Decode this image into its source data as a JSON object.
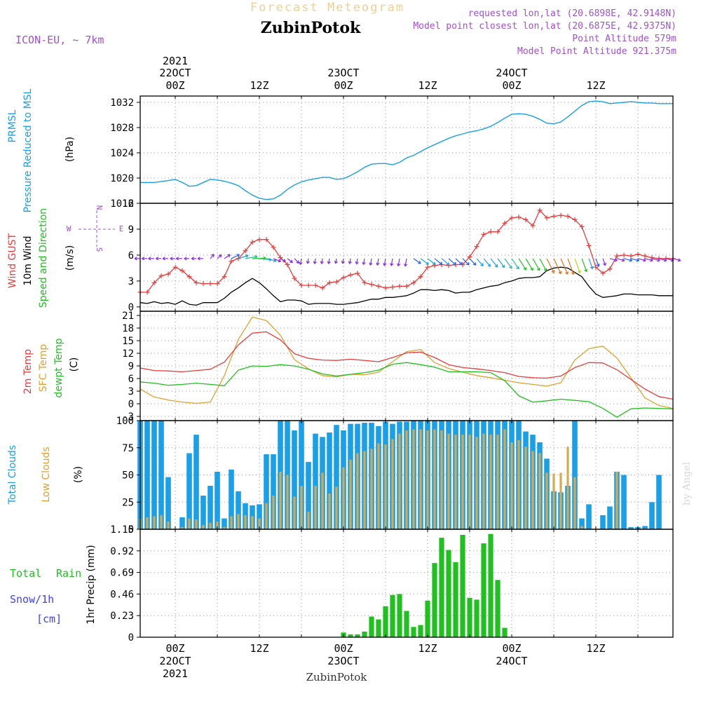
{
  "header": {
    "title": "Forecast Meteogram",
    "location": "ZubinPotok",
    "model": "ICON-EU, ~ 7km",
    "requested": "requested lon,lat (20.6898E, 42.9148N)",
    "closest": "Model point closest lon,lat (20.6875E, 42.9375N)",
    "point_alt": "Point Altitude 579m",
    "model_alt": "Model Point Altitude 921.375m",
    "watermark": "by Angel",
    "footer_location": "ZubinPotok"
  },
  "colors": {
    "blue": "#1aa0e6",
    "red": "#e83c3c",
    "orange": "#e0a030",
    "green": "#20c020",
    "purple": "#a050d0",
    "snow": "#4040ff",
    "title": "#f0d090",
    "grid": "#aaaaaa"
  },
  "time_axis": {
    "top_labels": [
      {
        "t": 0,
        "l1": "2021",
        "l2": "22OCT",
        "l3": "00Z"
      },
      {
        "t": 12,
        "l3": "12Z"
      },
      {
        "t": 24,
        "l2": "23OCT",
        "l3": "00Z"
      },
      {
        "t": 36,
        "l3": "12Z"
      },
      {
        "t": 48,
        "l2": "24OCT",
        "l3": "00Z"
      },
      {
        "t": 60,
        "l3": "12Z"
      }
    ],
    "bottom_labels": [
      {
        "t": 0,
        "l1": "00Z",
        "l2": "22OCT",
        "l3": "2021"
      },
      {
        "t": 12,
        "l1": "12Z"
      },
      {
        "t": 24,
        "l1": "00Z",
        "l2": "23OCT"
      },
      {
        "t": 36,
        "l1": "12Z"
      },
      {
        "t": 48,
        "l1": "00Z",
        "l2": "24OCT"
      },
      {
        "t": 60,
        "l1": "12Z"
      }
    ],
    "range_hours": [
      -5,
      71
    ],
    "hour_unit": "hours since 22OCT 00Z"
  },
  "panels": {
    "pressure": {
      "label1": "PRMSL",
      "label2": "Pressure Reduced to MSL",
      "unit": "(hPa)",
      "ticks": [
        "1016",
        "1020",
        "1024",
        "1028",
        "1032"
      ]
    },
    "wind": {
      "label_gust": "Wind GUST",
      "label_wind": "10m Wind",
      "label_dir": "Speed and Direction",
      "unit": "(m/s)",
      "ticks": [
        "0",
        "3",
        "6",
        "9",
        "12"
      ],
      "compass": {
        "n": "N",
        "s": "S",
        "w": "W",
        "e": "E"
      }
    },
    "temp": {
      "label_2m": "2m Temp",
      "label_sfc": "SFC Temp",
      "label_dew": "dewpt Temp",
      "unit": "(C)",
      "ticks": [
        "-3",
        "0",
        "3",
        "6",
        "9",
        "12",
        "15",
        "18",
        "21"
      ]
    },
    "clouds": {
      "label_total": "Total Clouds",
      "label_low": "Low Clouds",
      "unit": "(%)",
      "ticks": [
        "0",
        "25",
        "50",
        "75",
        "100"
      ]
    },
    "precip": {
      "label_total": "Total",
      "label_rain": "Rain",
      "label_snow": "Snow/1h",
      "label_cm": "[cm]",
      "ylabel": "1hr Precip (mm)",
      "ticks": [
        "0",
        "0.23",
        "0.46",
        "0.69",
        "0.92",
        "1.15"
      ]
    }
  },
  "chart_data": [
    {
      "type": "line",
      "title": "PRMSL Pressure Reduced to MSL",
      "ylabel": "(hPa)",
      "ylim": [
        1016,
        1033
      ],
      "x_hours": [
        -5,
        -3,
        -1,
        0,
        1,
        2,
        3,
        4,
        5,
        6,
        7,
        8,
        9,
        10,
        11,
        12,
        13,
        14,
        15,
        16,
        17,
        18,
        19,
        20,
        21,
        22,
        23,
        24,
        25,
        26,
        27,
        28,
        29,
        30,
        31,
        32,
        33,
        34,
        35,
        36,
        37,
        38,
        39,
        40,
        41,
        42,
        43,
        44,
        45,
        46,
        47,
        48,
        49,
        50,
        51,
        52,
        53,
        54,
        55,
        56,
        57,
        58,
        59,
        60,
        61,
        62,
        63,
        64,
        65,
        66,
        67,
        68,
        69,
        70,
        71
      ],
      "series": [
        {
          "name": "PRMSL",
          "values": [
            1019.3,
            1019.3,
            1019.6,
            1019.8,
            1019.3,
            1018.7,
            1018.8,
            1019.3,
            1019.8,
            1019.7,
            1019.5,
            1019.2,
            1018.8,
            1018.0,
            1017.3,
            1016.8,
            1016.6,
            1016.7,
            1017.3,
            1018.2,
            1018.9,
            1019.4,
            1019.7,
            1019.9,
            1020.1,
            1020.1,
            1019.8,
            1019.9,
            1020.4,
            1021.0,
            1021.7,
            1022.2,
            1022.3,
            1022.3,
            1022.1,
            1022.5,
            1023.2,
            1023.6,
            1024.2,
            1024.8,
            1025.3,
            1025.8,
            1026.3,
            1026.7,
            1027.0,
            1027.3,
            1027.5,
            1027.8,
            1028.2,
            1028.8,
            1029.5,
            1030.1,
            1030.2,
            1030.1,
            1029.8,
            1029.3,
            1028.7,
            1028.6,
            1028.9,
            1029.7,
            1030.6,
            1031.5,
            1032.1,
            1032.2,
            1032.1,
            1031.8,
            1031.9,
            1032.0,
            1032.1,
            1032.0,
            1031.9,
            1031.9,
            1031.8,
            1031.8,
            1031.8
          ]
        }
      ]
    },
    {
      "type": "line",
      "title": "Wind GUST / 10m Wind Speed and Direction",
      "ylabel": "(m/s)",
      "ylim": [
        -0.5,
        12
      ],
      "x_hours": [
        -5,
        -4,
        -3,
        -2,
        -1,
        0,
        1,
        2,
        3,
        4,
        5,
        6,
        7,
        8,
        9,
        10,
        11,
        12,
        13,
        14,
        15,
        16,
        17,
        18,
        19,
        20,
        21,
        22,
        23,
        24,
        25,
        26,
        27,
        28,
        29,
        30,
        31,
        32,
        33,
        34,
        35,
        36,
        37,
        38,
        39,
        40,
        41,
        42,
        43,
        44,
        45,
        46,
        47,
        48,
        49,
        50,
        51,
        52,
        53,
        54,
        55,
        56,
        57,
        58,
        59,
        60,
        61,
        62,
        63,
        64,
        65,
        66,
        67,
        68,
        69,
        70,
        71
      ],
      "series": [
        {
          "name": "Wind GUST",
          "values": [
            1.7,
            1.7,
            2.8,
            3.6,
            3.8,
            4.6,
            4.2,
            3.5,
            2.8,
            2.7,
            2.7,
            2.7,
            3.5,
            5.3,
            5.6,
            6.5,
            7.5,
            7.8,
            7.8,
            6.9,
            5.7,
            4.9,
            3.3,
            2.5,
            2.5,
            2.5,
            2.2,
            2.8,
            2.9,
            3.4,
            3.7,
            3.9,
            2.8,
            2.6,
            2.4,
            2.2,
            2.3,
            2.4,
            2.4,
            2.8,
            3.5,
            4.6,
            4.8,
            4.9,
            4.8,
            4.9,
            4.9,
            5.8,
            7.0,
            8.4,
            8.7,
            8.7,
            9.7,
            10.3,
            10.4,
            10.1,
            9.4,
            11.2,
            10.3,
            10.5,
            10.6,
            10.5,
            10.1,
            9.3,
            7.1,
            4.6,
            3.9,
            4.4,
            5.9,
            6.0,
            5.9,
            6.1,
            5.9,
            5.7,
            5.6,
            5.6,
            5.6
          ]
        },
        {
          "name": "10m Wind",
          "values": [
            0.5,
            0.4,
            0.6,
            0.4,
            0.5,
            0.3,
            0.7,
            0.3,
            0.2,
            0.5,
            0.5,
            0.5,
            1.0,
            1.7,
            2.2,
            2.8,
            3.3,
            2.8,
            2.1,
            1.3,
            0.6,
            0.8,
            0.8,
            0.7,
            0.3,
            0.4,
            0.4,
            0.4,
            0.3,
            0.3,
            0.4,
            0.5,
            0.7,
            0.9,
            0.9,
            1.1,
            1.1,
            1.2,
            1.3,
            1.6,
            2.0,
            2.0,
            1.9,
            2.0,
            1.9,
            1.6,
            1.7,
            1.7,
            2.0,
            2.2,
            2.4,
            2.5,
            2.8,
            3.0,
            3.3,
            3.4,
            3.4,
            3.5,
            4.2,
            4.5,
            4.6,
            4.5,
            4.0,
            3.5,
            2.4,
            1.5,
            1.1,
            1.2,
            1.3,
            1.5,
            1.5,
            1.4,
            1.4,
            1.4,
            1.3,
            1.3,
            1.3
          ]
        }
      ]
    },
    {
      "type": "line",
      "title": "2m Temp / SFC Temp / dewpt Temp",
      "ylabel": "(C)",
      "ylim": [
        -4,
        22
      ],
      "x_hours": [
        -5,
        -3,
        -1,
        1,
        3,
        5,
        7,
        9,
        11,
        13,
        15,
        17,
        19,
        21,
        23,
        25,
        27,
        29,
        31,
        33,
        35,
        37,
        39,
        41,
        43,
        45,
        47,
        49,
        51,
        53,
        55,
        57,
        59,
        61,
        63,
        65,
        67,
        69,
        71
      ],
      "series": [
        {
          "name": "2m Temp",
          "values": [
            8.5,
            7.9,
            7.8,
            7.6,
            7.9,
            8.2,
            9.9,
            14.0,
            16.8,
            17.1,
            15.2,
            11.9,
            10.8,
            10.4,
            10.3,
            10.6,
            10.3,
            10.0,
            11.0,
            12.1,
            12.3,
            11.0,
            9.3,
            8.6,
            8.3,
            7.9,
            7.4,
            6.5,
            6.2,
            6.1,
            6.6,
            8.6,
            9.8,
            9.7,
            8.1,
            5.8,
            3.5,
            1.7,
            1.1
          ]
        },
        {
          "name": "SFC Temp",
          "values": [
            3.5,
            1.6,
            0.9,
            0.4,
            0.1,
            0.4,
            6.7,
            15.3,
            20.6,
            19.8,
            16.3,
            10.5,
            8.3,
            6.7,
            6.4,
            7.0,
            6.9,
            7.5,
            10.0,
            12.4,
            12.9,
            9.8,
            8.4,
            7.5,
            6.7,
            6.2,
            5.6,
            5.0,
            4.6,
            4.2,
            5.0,
            10.4,
            13.1,
            13.7,
            10.9,
            6.2,
            1.4,
            -0.4,
            -1.1
          ]
        },
        {
          "name": "dewpt Temp",
          "values": [
            5.2,
            4.9,
            4.4,
            4.6,
            4.9,
            4.6,
            4.3,
            8.0,
            9.0,
            8.9,
            9.3,
            9.0,
            8.2,
            7.1,
            6.6,
            7.0,
            7.4,
            8.0,
            9.4,
            9.8,
            9.3,
            8.7,
            7.6,
            7.6,
            7.6,
            7.4,
            5.5,
            1.9,
            0.4,
            0.7,
            1.1,
            0.8,
            0.5,
            -1.1,
            -3.2,
            -1.2,
            -1.0,
            -1.1,
            -1.2
          ]
        }
      ]
    },
    {
      "type": "bar",
      "title": "Total Clouds / Low Clouds",
      "ylabel": "(%)",
      "ylim": [
        0,
        100
      ],
      "x_hours": [
        -5,
        -4,
        -3,
        -2,
        -1,
        0,
        1,
        2,
        3,
        4,
        5,
        6,
        7,
        8,
        9,
        10,
        11,
        12,
        13,
        14,
        15,
        16,
        17,
        18,
        19,
        20,
        21,
        22,
        23,
        24,
        25,
        26,
        27,
        28,
        29,
        30,
        31,
        32,
        33,
        34,
        35,
        36,
        37,
        38,
        39,
        40,
        41,
        42,
        43,
        44,
        45,
        46,
        47,
        48,
        49,
        50,
        51,
        52,
        53,
        54,
        55,
        56,
        57,
        58,
        59,
        60,
        61,
        62,
        63,
        64,
        65,
        66,
        67,
        68,
        69,
        70,
        71
      ],
      "series": [
        {
          "name": "Total Clouds",
          "values": [
            100,
            100,
            100,
            100,
            48,
            0,
            11,
            70,
            87,
            31,
            40,
            53,
            10,
            55,
            35,
            24,
            22,
            23,
            69,
            69,
            100,
            100,
            91,
            100,
            62,
            88,
            85,
            89,
            96,
            91,
            97,
            97,
            98,
            98,
            95,
            99,
            97,
            99,
            99,
            100,
            100,
            100,
            100,
            100,
            100,
            100,
            100,
            100,
            100,
            100,
            100,
            100,
            100,
            100,
            100,
            90,
            87,
            80,
            65,
            35,
            34,
            40,
            100,
            10,
            23,
            0,
            13,
            21,
            53,
            50,
            2,
            2,
            3,
            25,
            50,
            0,
            0
          ]
        },
        {
          "name": "Low Clouds",
          "values": [
            10,
            11,
            12,
            13,
            7,
            0,
            2,
            10,
            9,
            4,
            6,
            7,
            2,
            12,
            14,
            13,
            12,
            10,
            24,
            31,
            53,
            50,
            30,
            40,
            16,
            40,
            52,
            33,
            39,
            57,
            64,
            70,
            72,
            74,
            79,
            78,
            83,
            88,
            91,
            92,
            92,
            91,
            92,
            91,
            88,
            87,
            87,
            87,
            85,
            88,
            87,
            87,
            92,
            80,
            82,
            76,
            72,
            70,
            52,
            51,
            52,
            76,
            48,
            3,
            0,
            0,
            0,
            0,
            53,
            0,
            0,
            0,
            0,
            0,
            0,
            0,
            0
          ]
        }
      ]
    },
    {
      "type": "bar",
      "title": "Total Rain / Snow/1h [cm]",
      "ylabel": "1hr Precip (mm)",
      "ylim": [
        0,
        1.15
      ],
      "x_hours": [
        24,
        25,
        26,
        27,
        28,
        29,
        30,
        31,
        32,
        33,
        34,
        35,
        36,
        37,
        38,
        39,
        40,
        41,
        42,
        43,
        44,
        45,
        46,
        47,
        48
      ],
      "series": [
        {
          "name": "Total Rain",
          "values": [
            0.05,
            0.03,
            0.03,
            0.06,
            0.22,
            0.19,
            0.33,
            0.45,
            0.46,
            0.28,
            0.11,
            0.13,
            0.39,
            0.79,
            1.06,
            0.93,
            0.8,
            1.09,
            0.42,
            0.4,
            1.0,
            1.1,
            0.61,
            0.1,
            0.0
          ]
        }
      ]
    }
  ]
}
